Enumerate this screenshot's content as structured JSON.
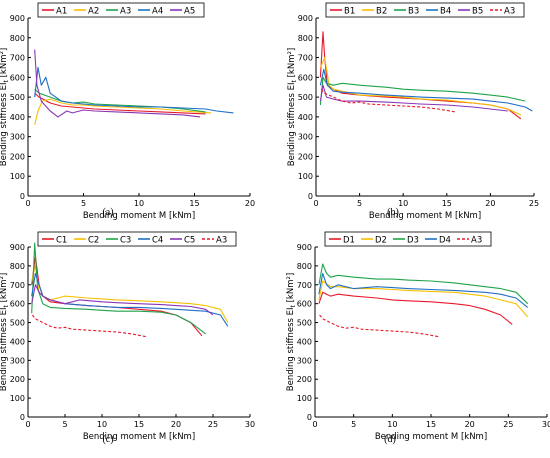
{
  "chart_data": [
    {
      "type": "line",
      "panel_label": "(a)",
      "xlabel": "Bending moment M [kNm]",
      "ylabel": "Bending stiffness EI_t [kNm²]",
      "xlim": [
        0,
        20
      ],
      "ylim": [
        0,
        900
      ],
      "xticks": [
        0,
        5,
        10,
        15,
        20
      ],
      "yticks": [
        0,
        100,
        200,
        300,
        400,
        500,
        600,
        700,
        800,
        900
      ],
      "legend_position": "top",
      "series": [
        {
          "name": "A1",
          "color": "#e8192c",
          "dashed": false,
          "x": [
            0.6,
            1,
            2,
            3,
            4,
            5,
            6,
            8,
            10,
            12,
            14,
            16
          ],
          "y": [
            520,
            500,
            470,
            455,
            450,
            445,
            440,
            435,
            430,
            425,
            420,
            415
          ]
        },
        {
          "name": "A2",
          "color": "#f5c000",
          "dashed": false,
          "x": [
            0.6,
            0.9,
            1.3,
            2,
            3,
            4,
            5,
            6,
            8,
            10,
            12,
            14,
            16.5
          ],
          "y": [
            360,
            430,
            480,
            490,
            470,
            460,
            460,
            455,
            450,
            445,
            440,
            430,
            420
          ]
        },
        {
          "name": "A3",
          "color": "#1fa34a",
          "dashed": false,
          "x": [
            0.6,
            1,
            2,
            3,
            4,
            5,
            6,
            8,
            10,
            12,
            14,
            16
          ],
          "y": [
            540,
            520,
            500,
            480,
            470,
            475,
            465,
            460,
            455,
            450,
            440,
            425
          ]
        },
        {
          "name": "A4",
          "color": "#1f6fc6",
          "dashed": false,
          "x": [
            0.6,
            0.9,
            1.2,
            1.6,
            2,
            3,
            4,
            5,
            6,
            8,
            10,
            12,
            14,
            16,
            17,
            18.5
          ],
          "y": [
            500,
            650,
            560,
            600,
            520,
            480,
            470,
            465,
            460,
            455,
            450,
            450,
            445,
            440,
            430,
            420
          ]
        },
        {
          "name": "A5",
          "color": "#8a35b5",
          "dashed": false,
          "x": [
            0.6,
            0.8,
            1.2,
            2,
            2.7,
            3.5,
            4,
            5,
            6,
            8,
            10,
            12,
            14,
            15.5
          ],
          "y": [
            740,
            560,
            480,
            430,
            400,
            430,
            420,
            435,
            430,
            425,
            420,
            415,
            410,
            400
          ]
        }
      ]
    },
    {
      "type": "line",
      "panel_label": "(b)",
      "xlabel": "Bending moment M [kNm]",
      "ylabel": "Bending stiffness EI_t [kNm²]",
      "xlim": [
        0,
        25
      ],
      "ylim": [
        0,
        900
      ],
      "xticks": [
        0,
        5,
        10,
        15,
        20,
        25
      ],
      "yticks": [
        0,
        100,
        200,
        300,
        400,
        500,
        600,
        700,
        800,
        900
      ],
      "legend_position": "top",
      "series": [
        {
          "name": "B1",
          "color": "#e8192c",
          "dashed": false,
          "x": [
            0.5,
            0.8,
            1,
            1.3,
            2,
            3,
            5,
            8,
            10,
            12,
            15,
            18,
            20,
            22,
            23.5
          ],
          "y": [
            600,
            830,
            700,
            560,
            540,
            520,
            510,
            500,
            495,
            490,
            480,
            470,
            460,
            440,
            390
          ]
        },
        {
          "name": "B2",
          "color": "#f5c000",
          "dashed": false,
          "x": [
            0.5,
            1,
            1.5,
            2,
            3,
            5,
            8,
            10,
            12,
            15,
            18,
            20,
            22,
            23.5
          ],
          "y": [
            650,
            700,
            560,
            540,
            530,
            510,
            505,
            500,
            490,
            485,
            470,
            460,
            440,
            410
          ]
        },
        {
          "name": "B3",
          "color": "#1fa34a",
          "dashed": false,
          "x": [
            0.5,
            0.8,
            1.2,
            2,
            3,
            5,
            8,
            10,
            12,
            15,
            18,
            20,
            22,
            24
          ],
          "y": [
            460,
            600,
            570,
            560,
            570,
            560,
            550,
            540,
            535,
            530,
            520,
            510,
            500,
            480
          ]
        },
        {
          "name": "B4",
          "color": "#1f6fc6",
          "dashed": false,
          "x": [
            0.5,
            0.9,
            1.3,
            2,
            3,
            5,
            8,
            10,
            12,
            15,
            18,
            20,
            22,
            24,
            24.8
          ],
          "y": [
            560,
            640,
            560,
            530,
            525,
            520,
            510,
            505,
            500,
            495,
            490,
            480,
            470,
            450,
            430
          ]
        },
        {
          "name": "B5",
          "color": "#8a35b5",
          "dashed": false,
          "x": [
            0.5,
            0.8,
            1.2,
            2,
            3,
            5,
            8,
            10,
            12,
            15,
            18,
            20,
            22
          ],
          "y": [
            480,
            560,
            500,
            490,
            480,
            480,
            475,
            470,
            465,
            460,
            450,
            440,
            430
          ]
        },
        {
          "name": "A3",
          "color": "#e8192c",
          "dashed": true,
          "x": [
            0.6,
            1,
            2,
            3,
            4,
            5,
            6,
            8,
            10,
            12,
            14,
            16
          ],
          "y": [
            540,
            520,
            500,
            480,
            470,
            475,
            465,
            460,
            455,
            450,
            440,
            425
          ]
        }
      ]
    },
    {
      "type": "line",
      "panel_label": "(c)",
      "xlabel": "Bending moment M [kNm]",
      "ylabel": "Bending stiffness EI_t [kNm²]",
      "xlim": [
        0,
        30
      ],
      "ylim": [
        0,
        900
      ],
      "xticks": [
        0,
        5,
        10,
        15,
        20,
        25,
        30
      ],
      "yticks": [
        0,
        100,
        200,
        300,
        400,
        500,
        600,
        700,
        800,
        900
      ],
      "legend_position": "top",
      "series": [
        {
          "name": "C1",
          "color": "#e8192c",
          "dashed": false,
          "x": [
            0.5,
            1,
            1.5,
            2,
            3,
            5,
            8,
            10,
            12,
            15,
            18,
            20,
            22,
            23.5
          ],
          "y": [
            700,
            850,
            700,
            640,
            610,
            600,
            590,
            585,
            580,
            570,
            560,
            540,
            500,
            430
          ]
        },
        {
          "name": "C2",
          "color": "#f5c000",
          "dashed": false,
          "x": [
            0.5,
            1,
            1.5,
            2,
            3,
            5,
            8,
            10,
            12,
            15,
            18,
            20,
            22,
            24,
            26,
            27
          ],
          "y": [
            720,
            800,
            660,
            640,
            620,
            640,
            630,
            625,
            620,
            615,
            610,
            605,
            600,
            590,
            570,
            500
          ]
        },
        {
          "name": "C3",
          "color": "#1fa34a",
          "dashed": false,
          "x": [
            0.5,
            0.9,
            1.3,
            2,
            3,
            5,
            8,
            10,
            12,
            15,
            18,
            20,
            22,
            24
          ],
          "y": [
            550,
            920,
            680,
            600,
            580,
            575,
            570,
            565,
            560,
            560,
            555,
            540,
            500,
            440
          ]
        },
        {
          "name": "C4",
          "color": "#1f6fc6",
          "dashed": false,
          "x": [
            0.5,
            1,
            1.5,
            2,
            3,
            5,
            8,
            10,
            12,
            15,
            18,
            20,
            22,
            24,
            26,
            27
          ],
          "y": [
            640,
            760,
            700,
            640,
            620,
            600,
            590,
            585,
            580,
            580,
            575,
            570,
            565,
            560,
            540,
            480
          ]
        },
        {
          "name": "C5",
          "color": "#8a35b5",
          "dashed": false,
          "x": [
            0.5,
            1,
            1.5,
            2,
            3,
            5,
            7,
            10,
            12,
            15,
            18,
            20,
            22,
            24,
            25
          ],
          "y": [
            600,
            700,
            660,
            640,
            620,
            600,
            620,
            610,
            605,
            600,
            595,
            590,
            585,
            570,
            540
          ]
        },
        {
          "name": "A3",
          "color": "#e8192c",
          "dashed": true,
          "x": [
            0.6,
            1,
            2,
            3,
            4,
            5,
            6,
            8,
            10,
            12,
            14,
            16
          ],
          "y": [
            540,
            520,
            500,
            480,
            470,
            475,
            465,
            460,
            455,
            450,
            440,
            425
          ]
        }
      ]
    },
    {
      "type": "line",
      "panel_label": "(d)",
      "xlabel": "Bending moment M [kNm]",
      "ylabel": "Bending stiffness EI_t [kNm²]",
      "xlim": [
        0,
        30
      ],
      "ylim": [
        0,
        900
      ],
      "xticks": [
        0,
        5,
        10,
        15,
        20,
        25,
        30
      ],
      "yticks": [
        0,
        100,
        200,
        300,
        400,
        500,
        600,
        700,
        800,
        900
      ],
      "legend_position": "top",
      "series": [
        {
          "name": "D1",
          "color": "#e8192c",
          "dashed": false,
          "x": [
            0.5,
            1,
            2,
            3,
            5,
            8,
            10,
            12,
            15,
            18,
            20,
            22,
            24,
            25.5
          ],
          "y": [
            600,
            660,
            640,
            650,
            640,
            630,
            620,
            615,
            610,
            600,
            590,
            570,
            540,
            490
          ]
        },
        {
          "name": "D2",
          "color": "#f5c000",
          "dashed": false,
          "x": [
            0.5,
            1,
            2,
            3,
            5,
            8,
            10,
            12,
            15,
            18,
            20,
            22,
            24,
            26,
            27.5
          ],
          "y": [
            620,
            720,
            690,
            690,
            680,
            680,
            675,
            670,
            665,
            660,
            650,
            640,
            620,
            600,
            530
          ]
        },
        {
          "name": "D3",
          "color": "#1fa34a",
          "dashed": false,
          "x": [
            0.5,
            1,
            1.5,
            2,
            3,
            5,
            8,
            10,
            12,
            15,
            18,
            20,
            22,
            24,
            26,
            27.5
          ],
          "y": [
            700,
            810,
            760,
            740,
            750,
            740,
            730,
            730,
            725,
            720,
            710,
            700,
            690,
            680,
            660,
            600
          ]
        },
        {
          "name": "D4",
          "color": "#1f6fc6",
          "dashed": false,
          "x": [
            0.5,
            1,
            1.5,
            2,
            3,
            5,
            8,
            10,
            12,
            15,
            18,
            20,
            22,
            24,
            26,
            27.5
          ],
          "y": [
            650,
            760,
            700,
            680,
            700,
            680,
            690,
            685,
            680,
            675,
            670,
            665,
            660,
            650,
            630,
            580
          ]
        },
        {
          "name": "A3",
          "color": "#e8192c",
          "dashed": true,
          "x": [
            0.6,
            1,
            2,
            3,
            4,
            5,
            6,
            8,
            10,
            12,
            14,
            16
          ],
          "y": [
            540,
            520,
            500,
            480,
            470,
            475,
            465,
            460,
            455,
            450,
            440,
            425
          ]
        }
      ]
    }
  ]
}
